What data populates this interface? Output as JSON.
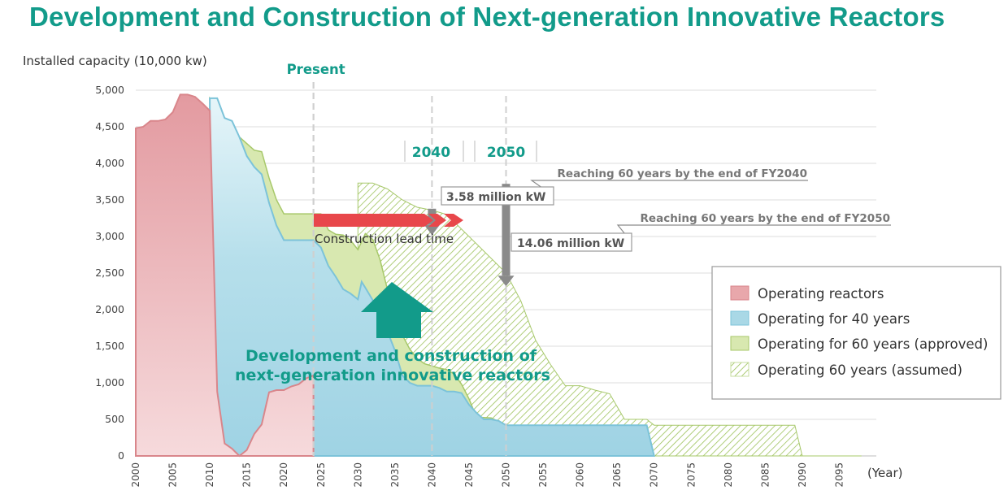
{
  "title": "Development and Construction of Next-generation Innovative Reactors",
  "colors": {
    "title": "#129b8a",
    "operating": "#e8a7ab",
    "operating_stroke": "#d9868b",
    "forty": "#a9d8e6",
    "forty_stroke": "#7cc3d9",
    "sixty_approved": "#d8e8b0",
    "sixty_stroke": "#a7c86a",
    "hatch": "#9cc25a",
    "arrow_red": "#e8474b",
    "arrow_teal": "#129b8a",
    "gray_arrow": "#8a8a8a"
  },
  "chart_data": {
    "type": "area",
    "ylabel": "Installed capacity (10,000 kw)",
    "xlabel": "(Year)",
    "x_range": [
      2000,
      2100
    ],
    "y_range": [
      0,
      5000
    ],
    "yticks": [
      0,
      500,
      1000,
      1500,
      2000,
      2500,
      3000,
      3500,
      4000,
      4500,
      5000
    ],
    "ytick_labels": [
      "0",
      "500",
      "1,000",
      "1,500",
      "2,000",
      "2,500",
      "3,000",
      "3,500",
      "4,000",
      "4,500",
      "5,000"
    ],
    "xticks": [
      2000,
      2005,
      2010,
      2015,
      2020,
      2025,
      2030,
      2035,
      2040,
      2045,
      2050,
      2055,
      2060,
      2065,
      2070,
      2075,
      2080,
      2085,
      2090,
      2095
    ],
    "xtick_labels": [
      "2000",
      "2005",
      "2010",
      "2015",
      "2020",
      "2025",
      "2030",
      "2035",
      "2040",
      "2045",
      "2050",
      "2055",
      "2060",
      "2065",
      "2070",
      "2075",
      "2080",
      "2085",
      "2090",
      "2095"
    ],
    "present_year": 2024,
    "present_label": "Present",
    "markers": [
      {
        "year": 2040,
        "label": "2040"
      },
      {
        "year": 2050,
        "label": "2050"
      }
    ],
    "series": [
      {
        "name": "Operating reactors",
        "points": [
          [
            2000,
            4480
          ],
          [
            2001,
            4500
          ],
          [
            2002,
            4580
          ],
          [
            2003,
            4580
          ],
          [
            2004,
            4600
          ],
          [
            2005,
            4700
          ],
          [
            2006,
            4940
          ],
          [
            2007,
            4940
          ],
          [
            2008,
            4910
          ],
          [
            2009,
            4820
          ],
          [
            2010,
            4720
          ],
          [
            2011,
            880
          ],
          [
            2012,
            170
          ],
          [
            2013,
            100
          ],
          [
            2014,
            0
          ],
          [
            2015,
            80
          ],
          [
            2016,
            300
          ],
          [
            2017,
            430
          ],
          [
            2018,
            870
          ],
          [
            2019,
            900
          ],
          [
            2020,
            900
          ],
          [
            2021,
            950
          ],
          [
            2022,
            980
          ],
          [
            2023,
            1060
          ],
          [
            2024,
            1100
          ]
        ]
      },
      {
        "name": "Operating for 40 years",
        "points": [
          [
            2010,
            4890
          ],
          [
            2011,
            4890
          ],
          [
            2012,
            4620
          ],
          [
            2013,
            4580
          ],
          [
            2014,
            4360
          ],
          [
            2015,
            4100
          ],
          [
            2016,
            3950
          ],
          [
            2017,
            3850
          ],
          [
            2018,
            3460
          ],
          [
            2019,
            3150
          ],
          [
            2020,
            2950
          ],
          [
            2021,
            2950
          ],
          [
            2022,
            2950
          ],
          [
            2023,
            2950
          ],
          [
            2024,
            2950
          ],
          [
            2025,
            2850
          ],
          [
            2026,
            2600
          ],
          [
            2027,
            2450
          ],
          [
            2028,
            2280
          ],
          [
            2029,
            2220
          ],
          [
            2030,
            2140
          ],
          [
            2030.5,
            2380
          ],
          [
            2031,
            2300
          ],
          [
            2032,
            2130
          ],
          [
            2033,
            1920
          ],
          [
            2034,
            1700
          ],
          [
            2035,
            1440
          ],
          [
            2036,
            1100
          ],
          [
            2037,
            1000
          ],
          [
            2038,
            960
          ],
          [
            2039,
            960
          ],
          [
            2040,
            960
          ],
          [
            2041,
            930
          ],
          [
            2042,
            880
          ],
          [
            2043,
            880
          ],
          [
            2044,
            860
          ],
          [
            2045,
            700
          ],
          [
            2046,
            590
          ],
          [
            2047,
            500
          ],
          [
            2048,
            500
          ],
          [
            2049,
            480
          ],
          [
            2050,
            420
          ],
          [
            2055,
            420
          ],
          [
            2060,
            420
          ],
          [
            2065,
            420
          ],
          [
            2069,
            420
          ],
          [
            2070,
            0
          ]
        ]
      },
      {
        "name": "Operating for 60 years (approved)",
        "points": [
          [
            2010,
            4890
          ],
          [
            2012,
            4620
          ],
          [
            2014,
            4360
          ],
          [
            2016,
            4180
          ],
          [
            2017,
            4160
          ],
          [
            2018,
            3800
          ],
          [
            2019,
            3500
          ],
          [
            2020,
            3310
          ],
          [
            2025,
            3310
          ],
          [
            2026,
            3090
          ],
          [
            2027,
            3030
          ],
          [
            2028,
            3020
          ],
          [
            2029,
            2950
          ],
          [
            2030,
            2820
          ],
          [
            2031,
            3040
          ],
          [
            2032,
            2960
          ],
          [
            2033,
            2680
          ],
          [
            2034,
            2270
          ],
          [
            2035,
            2000
          ],
          [
            2036,
            1650
          ],
          [
            2037,
            1460
          ],
          [
            2038,
            1330
          ],
          [
            2039,
            1260
          ],
          [
            2040,
            1230
          ],
          [
            2041,
            1200
          ],
          [
            2042,
            1180
          ],
          [
            2043,
            1120
          ],
          [
            2044,
            980
          ],
          [
            2045,
            780
          ],
          [
            2046,
            530
          ],
          [
            2048,
            520
          ],
          [
            2050,
            420
          ],
          [
            2069,
            420
          ],
          [
            2070,
            0
          ]
        ]
      },
      {
        "name": "Operating 60 years (assumed)",
        "points": [
          [
            2030,
            3730
          ],
          [
            2032,
            3730
          ],
          [
            2034,
            3650
          ],
          [
            2036,
            3500
          ],
          [
            2038,
            3400
          ],
          [
            2040,
            3360
          ],
          [
            2042,
            3300
          ],
          [
            2044,
            3100
          ],
          [
            2046,
            2900
          ],
          [
            2048,
            2700
          ],
          [
            2050,
            2500
          ],
          [
            2052,
            2120
          ],
          [
            2054,
            1580
          ],
          [
            2056,
            1250
          ],
          [
            2058,
            960
          ],
          [
            2060,
            960
          ],
          [
            2062,
            900
          ],
          [
            2064,
            850
          ],
          [
            2066,
            500
          ],
          [
            2069,
            500
          ],
          [
            2070,
            420
          ],
          [
            2089,
            420
          ],
          [
            2090,
            0
          ],
          [
            2098,
            0
          ]
        ]
      }
    ],
    "legend": [
      "Operating reactors",
      "Operating for 40 years",
      "Operating for 60 years (approved)",
      "Operating 60 years (assumed)"
    ],
    "legend_position": "right",
    "annotations": {
      "drop_2040": {
        "year": 2040,
        "label": "3.58 million kW",
        "from": 3380,
        "to": 3020
      },
      "drop_2050": {
        "year": 2050,
        "label": "14.06 million kW",
        "from": 3720,
        "to": 2320
      },
      "reach_2040": "Reaching 60 years by the end of FY2040",
      "reach_2050": "Reaching 60 years by the end of FY2050",
      "lead_time": "Construction lead time",
      "innovation_line1": "Development and construction of",
      "innovation_line2": "next-generation innovative reactors"
    }
  }
}
